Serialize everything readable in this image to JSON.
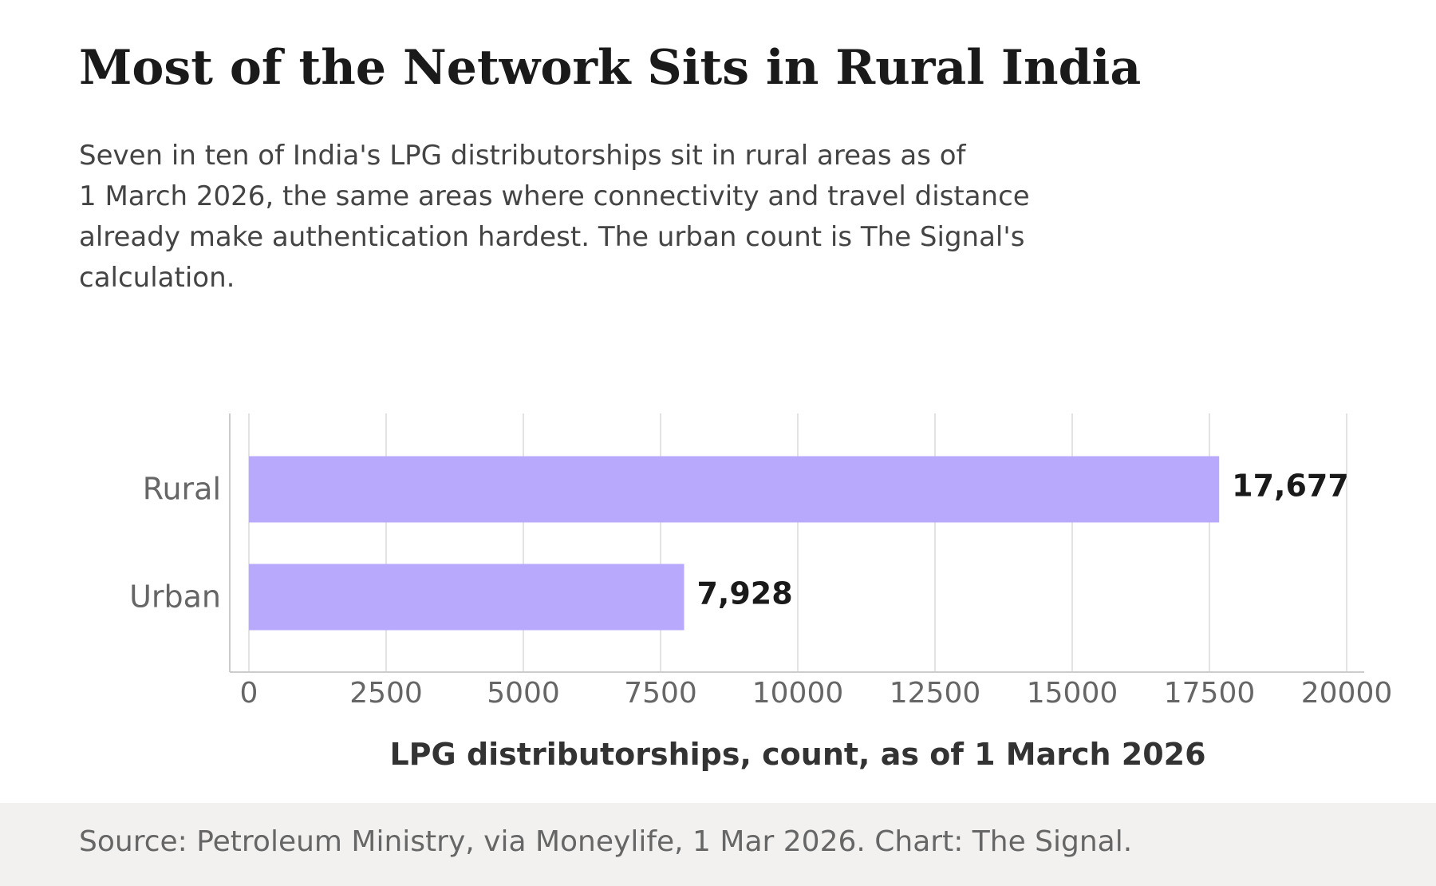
{
  "header": {
    "title": "Most of the Network Sits in Rural India",
    "subtitle_lines": [
      "Seven in ten of India's LPG distributorships sit in rural areas as of",
      "1 March 2026, the same areas where connectivity and travel distance",
      "already make authentication hardest. The urban count is The Signal's",
      "calculation."
    ]
  },
  "chart_data": {
    "type": "bar",
    "orientation": "horizontal",
    "categories": [
      "Rural",
      "Urban"
    ],
    "values": [
      17677,
      7928
    ],
    "data_labels": [
      "17,677",
      "7,928"
    ],
    "xlabel": "LPG distributorships, count, as of 1 March 2026",
    "ylabel": "",
    "xlim": [
      0,
      20000
    ],
    "xticks": [
      "0",
      "2500",
      "5000",
      "7500",
      "10000",
      "12500",
      "15000",
      "17500",
      "20000"
    ],
    "grid": "vertical",
    "bar_color": "#b8a9fc"
  },
  "footer": {
    "source": "Source: Petroleum Ministry, via Moneylife, 1 Mar 2026. Chart: The Signal."
  }
}
